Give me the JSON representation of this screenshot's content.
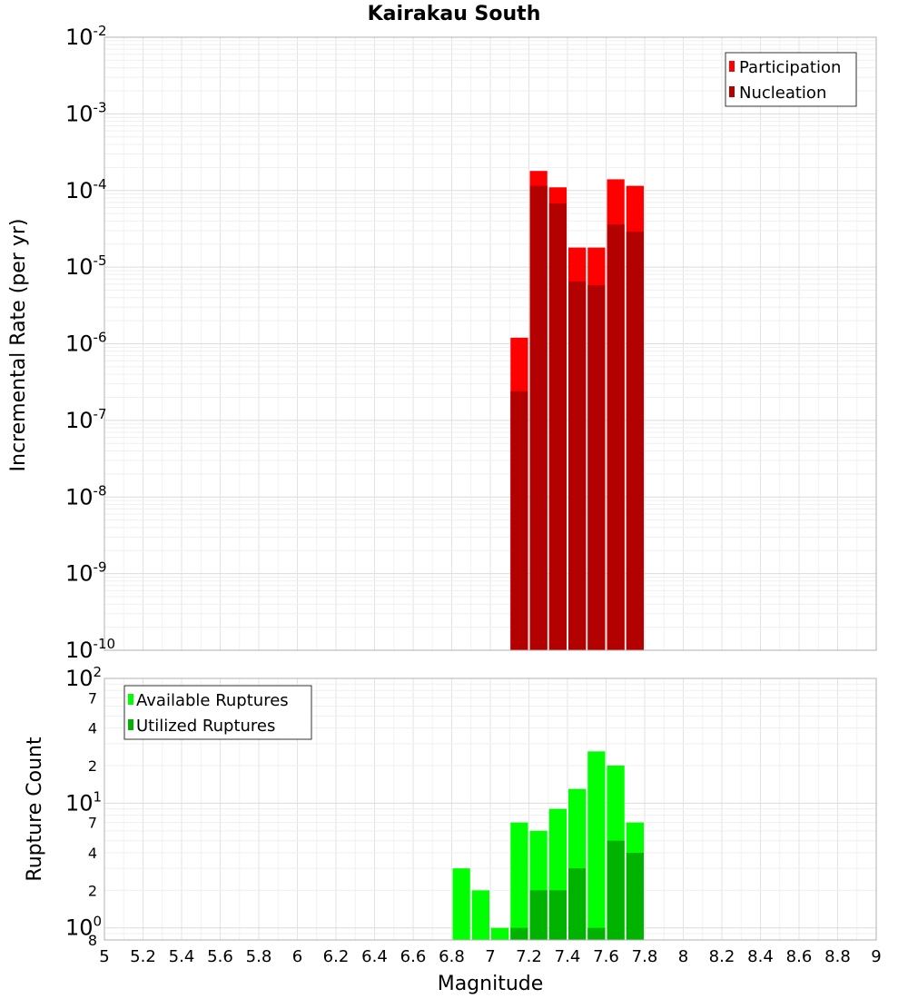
{
  "chart_data": [
    {
      "type": "bar",
      "title": "Kairakau South",
      "xlabel": "Magnitude",
      "ylabel": "Incremental Rate (per yr)",
      "yscale": "log",
      "ylim": [
        1e-10,
        0.01
      ],
      "xlim": [
        5,
        9
      ],
      "bin_width": 0.1,
      "major_ticks": [
        {
          "base": "10",
          "exp": "-2",
          "value": 0.01
        },
        {
          "base": "10",
          "exp": "-3",
          "value": 0.001
        },
        {
          "base": "10",
          "exp": "-4",
          "value": 0.0001
        },
        {
          "base": "10",
          "exp": "-5",
          "value": 1e-05
        },
        {
          "base": "10",
          "exp": "-6",
          "value": 1e-06
        },
        {
          "base": "10",
          "exp": "-7",
          "value": 1e-07
        },
        {
          "base": "10",
          "exp": "-8",
          "value": 1e-08
        },
        {
          "base": "10",
          "exp": "-9",
          "value": 1e-09
        },
        {
          "base": "10",
          "exp": "-10",
          "value": 1e-10
        }
      ],
      "legend": [
        "Participation",
        "Nucleation"
      ],
      "series": [
        {
          "name": "Participation",
          "color": "#ff0000",
          "x": [
            7.15,
            7.25,
            7.35,
            7.45,
            7.55,
            7.65,
            7.75
          ],
          "values": [
            1.2e-06,
            0.00018,
            0.00011,
            1.8e-05,
            1.8e-05,
            0.00014,
            0.000115
          ]
        },
        {
          "name": "Nucleation",
          "color": "#b30000",
          "x": [
            7.15,
            7.25,
            7.35,
            7.45,
            7.55,
            7.65,
            7.75
          ],
          "values": [
            2.4e-07,
            0.000115,
            6.8e-05,
            6.5e-06,
            5.8e-06,
            3.6e-05,
            2.9e-05
          ]
        }
      ]
    },
    {
      "type": "bar",
      "title": "",
      "xlabel": "Magnitude",
      "ylabel": "Rupture Count",
      "yscale": "log",
      "ylim": [
        0.8,
        100
      ],
      "xlim": [
        5,
        9
      ],
      "bin_width": 0.1,
      "xticks": [
        "5",
        "5.2",
        "5.4",
        "5.6",
        "5.8",
        "6",
        "6.2",
        "6.4",
        "6.6",
        "6.8",
        "7",
        "7.2",
        "7.4",
        "7.6",
        "7.8",
        "8",
        "8.2",
        "8.4",
        "8.6",
        "8.8",
        "9"
      ],
      "major_ticks": [
        {
          "base": "10",
          "exp": "2",
          "value": 100
        },
        {
          "base": "10",
          "exp": "1",
          "value": 10
        },
        {
          "base": "10",
          "exp": "0",
          "value": 1
        }
      ],
      "minor_ticks": [
        {
          "label": "7",
          "value": 70
        },
        {
          "label": "4",
          "value": 40
        },
        {
          "label": "2",
          "value": 20
        },
        {
          "label": "7",
          "value": 7
        },
        {
          "label": "4",
          "value": 4
        },
        {
          "label": "2",
          "value": 2
        },
        {
          "label": "8",
          "value": 0.8
        }
      ],
      "legend": [
        "Available Ruptures",
        "Utilized Ruptures"
      ],
      "series": [
        {
          "name": "Available Ruptures",
          "color": "#00ff00",
          "x": [
            6.85,
            6.95,
            7.05,
            7.15,
            7.25,
            7.35,
            7.45,
            7.55,
            7.65,
            7.75
          ],
          "values": [
            3,
            2,
            1,
            7,
            6,
            9,
            13,
            26,
            20,
            7
          ]
        },
        {
          "name": "Utilized Ruptures",
          "color": "#00b300",
          "x": [
            7.15,
            7.25,
            7.35,
            7.45,
            7.55,
            7.65,
            7.75
          ],
          "values": [
            1,
            2,
            2,
            3,
            1,
            5,
            4
          ]
        }
      ]
    }
  ]
}
